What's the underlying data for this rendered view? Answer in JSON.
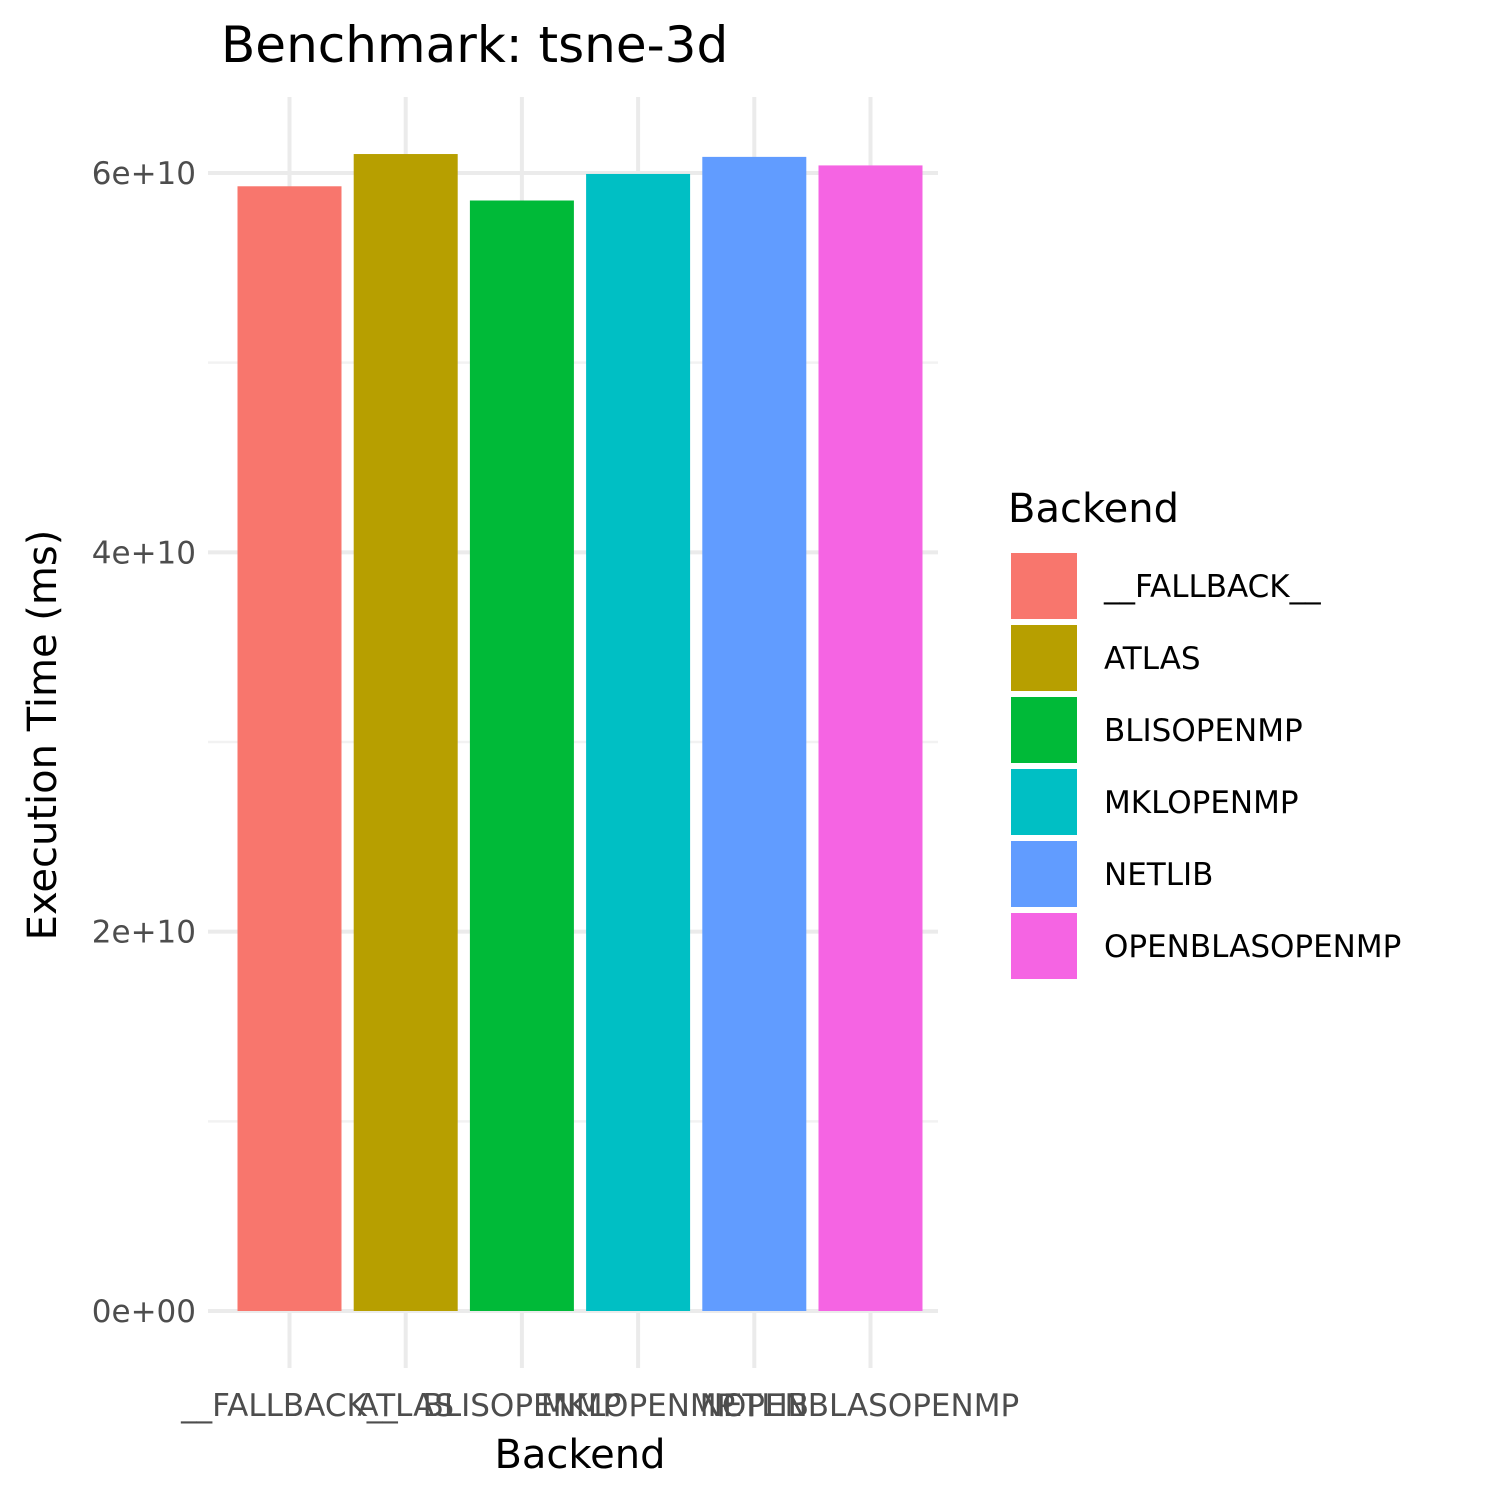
{
  "chart_data": {
    "type": "bar",
    "title": "Benchmark: tsne-3d",
    "xlabel": "Backend",
    "ylabel": "Execution Time (ms)",
    "categories": [
      "__FALLBACK__",
      "ATLAS",
      "BLISOPENMP",
      "MKLOPENMP",
      "NETLIB",
      "OPENBLASOPENMP"
    ],
    "values": [
      59300000000,
      61000000000,
      58550000000,
      59950000000,
      60850000000,
      60400000000
    ],
    "colors": [
      "#F8766D",
      "#B79F00",
      "#00BA38",
      "#00BFC4",
      "#619CFF",
      "#F564E3"
    ],
    "ylim": [
      0,
      64000000000
    ],
    "yticks": [
      0,
      20000000000,
      40000000000,
      60000000000
    ],
    "ytick_labels": [
      "0e+00",
      "2e+10",
      "4e+10",
      "6e+10"
    ],
    "yminor": [
      10000000000,
      30000000000,
      50000000000
    ],
    "grid": true,
    "legend": {
      "title": "Backend",
      "position": "right",
      "labels": [
        "__FALLBACK__",
        "ATLAS",
        "BLISOPENMP",
        "MKLOPENMP",
        "NETLIB",
        "OPENBLASOPENMP"
      ]
    }
  }
}
